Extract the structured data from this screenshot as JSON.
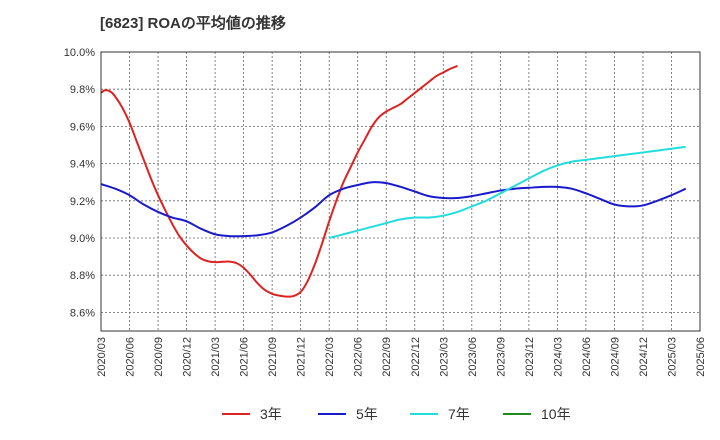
{
  "header": {
    "title": "[6823]  ROAの平均値の推移"
  },
  "chart_data": {
    "type": "line",
    "title": "[6823]  ROAの平均値の推移",
    "xlabel": "",
    "ylabel": "",
    "x_ticks": [
      "2020/03",
      "2020/06",
      "2020/09",
      "2020/12",
      "2021/03",
      "2021/06",
      "2021/09",
      "2021/12",
      "2022/03",
      "2022/06",
      "2022/09",
      "2022/12",
      "2023/03",
      "2023/06",
      "2023/09",
      "2023/12",
      "2024/03",
      "2024/06",
      "2024/09",
      "2024/12",
      "2025/03",
      "2025/06"
    ],
    "y_ticks": [
      "8.6%",
      "8.8%",
      "9.0%",
      "9.2%",
      "9.4%",
      "9.6%",
      "9.8%",
      "10.0%"
    ],
    "ylim": [
      8.5,
      10.0
    ],
    "grid": true,
    "legend_position": "bottom",
    "series": [
      {
        "name": "3年",
        "color": "#dd2222",
        "points": [
          [
            0,
            9.78
          ],
          [
            0.3,
            9.795
          ],
          [
            0.7,
            9.785
          ],
          [
            1,
            9.76
          ],
          [
            1.5,
            9.7
          ],
          [
            2,
            9.62
          ],
          [
            2.5,
            9.52
          ],
          [
            3,
            9.42
          ],
          [
            3.5,
            9.32
          ],
          [
            4,
            9.23
          ],
          [
            4.5,
            9.15
          ],
          [
            5,
            9.075
          ],
          [
            5.5,
            9.01
          ],
          [
            6,
            8.96
          ],
          [
            6.5,
            8.92
          ],
          [
            7,
            8.89
          ],
          [
            7.5,
            8.875
          ],
          [
            8,
            8.87
          ],
          [
            8.5,
            8.872
          ],
          [
            9,
            8.873
          ],
          [
            9.5,
            8.865
          ],
          [
            10,
            8.84
          ],
          [
            10.5,
            8.8
          ],
          [
            11,
            8.755
          ],
          [
            11.5,
            8.72
          ],
          [
            12,
            8.7
          ],
          [
            12.5,
            8.69
          ],
          [
            13,
            8.685
          ],
          [
            13.5,
            8.688
          ],
          [
            14,
            8.71
          ],
          [
            14.5,
            8.77
          ],
          [
            15,
            8.86
          ],
          [
            15.5,
            8.97
          ],
          [
            16,
            9.09
          ],
          [
            16.5,
            9.2
          ],
          [
            17,
            9.3
          ],
          [
            17.5,
            9.38
          ],
          [
            18,
            9.46
          ],
          [
            18.5,
            9.53
          ],
          [
            19,
            9.6
          ],
          [
            19.5,
            9.65
          ],
          [
            20,
            9.68
          ],
          [
            20.5,
            9.7
          ],
          [
            21,
            9.72
          ],
          [
            21.5,
            9.75
          ],
          [
            22,
            9.78
          ],
          [
            22.5,
            9.81
          ],
          [
            23,
            9.84
          ],
          [
            23.5,
            9.87
          ],
          [
            24,
            9.89
          ],
          [
            24.5,
            9.91
          ],
          [
            25,
            9.925
          ]
        ]
      },
      {
        "name": "5年",
        "color": "#1a1acc",
        "points": [
          [
            0,
            9.29
          ],
          [
            1,
            9.265
          ],
          [
            2,
            9.23
          ],
          [
            3,
            9.18
          ],
          [
            4,
            9.14
          ],
          [
            5,
            9.11
          ],
          [
            6,
            9.09
          ],
          [
            7,
            9.05
          ],
          [
            8,
            9.02
          ],
          [
            9,
            9.01
          ],
          [
            10,
            9.01
          ],
          [
            11,
            9.015
          ],
          [
            12,
            9.03
          ],
          [
            13,
            9.065
          ],
          [
            14,
            9.11
          ],
          [
            15,
            9.165
          ],
          [
            16,
            9.23
          ],
          [
            17,
            9.265
          ],
          [
            18,
            9.285
          ],
          [
            19,
            9.3
          ],
          [
            20,
            9.295
          ],
          [
            21,
            9.275
          ],
          [
            22,
            9.25
          ],
          [
            23,
            9.225
          ],
          [
            24,
            9.215
          ],
          [
            25,
            9.215
          ],
          [
            26,
            9.225
          ],
          [
            27,
            9.24
          ],
          [
            28,
            9.255
          ],
          [
            29,
            9.265
          ],
          [
            30,
            9.27
          ],
          [
            31,
            9.275
          ],
          [
            32,
            9.275
          ],
          [
            33,
            9.265
          ],
          [
            34,
            9.24
          ],
          [
            35,
            9.21
          ],
          [
            36,
            9.18
          ],
          [
            37,
            9.17
          ],
          [
            38,
            9.175
          ],
          [
            39,
            9.2
          ],
          [
            40,
            9.23
          ],
          [
            41,
            9.265
          ]
        ]
      },
      {
        "name": "7年",
        "color": "#22dddd",
        "points": [
          [
            0,
            9.0
          ],
          [
            1,
            9.02
          ],
          [
            2,
            9.04
          ],
          [
            3,
            9.06
          ],
          [
            4,
            9.08
          ],
          [
            5,
            9.1
          ],
          [
            6,
            9.11
          ],
          [
            7,
            9.11
          ],
          [
            8,
            9.12
          ],
          [
            9,
            9.14
          ],
          [
            10,
            9.17
          ],
          [
            11,
            9.2
          ],
          [
            12,
            9.24
          ],
          [
            13,
            9.28
          ],
          [
            14,
            9.32
          ],
          [
            15,
            9.36
          ],
          [
            16,
            9.39
          ],
          [
            17,
            9.41
          ],
          [
            18,
            9.42
          ],
          [
            19,
            9.43
          ],
          [
            20,
            9.44
          ],
          [
            21,
            9.45
          ],
          [
            22,
            9.46
          ],
          [
            23,
            9.47
          ],
          [
            24,
            9.48
          ],
          [
            25,
            9.49
          ]
        ]
      },
      {
        "name": "10年",
        "color": "#228822",
        "points": []
      }
    ]
  }
}
